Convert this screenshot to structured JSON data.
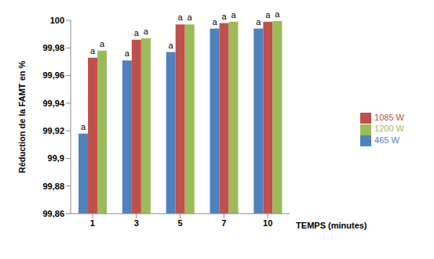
{
  "chart_data": {
    "type": "bar",
    "x_label": "TEMPS (minutes)",
    "y_label": "Réduction de la FAMT en %",
    "categories": [
      "1",
      "3",
      "5",
      "7",
      "10"
    ],
    "series": [
      {
        "name": "465 W",
        "color": "#4f81bd",
        "values": [
          99.918,
          99.971,
          99.977,
          99.994,
          99.994
        ],
        "annotations": [
          "a",
          "a",
          "a",
          "a",
          "a"
        ]
      },
      {
        "name": "1085 W",
        "color": "#c0504d",
        "values": [
          99.973,
          99.986,
          99.997,
          99.998,
          99.999
        ],
        "annotations": [
          "a",
          "a",
          "a",
          "a",
          "a"
        ]
      },
      {
        "name": "1200 W",
        "color": "#9bbb59",
        "values": [
          99.978,
          99.987,
          99.997,
          99.999,
          99.9995
        ],
        "annotations": [
          "a",
          "a",
          "a",
          "a",
          "a"
        ]
      }
    ],
    "ylim": [
      99.86,
      100
    ],
    "yticks": [
      {
        "value": 99.86,
        "label": "99,86"
      },
      {
        "value": 99.88,
        "label": "99,88"
      },
      {
        "value": 99.9,
        "label": "99,9"
      },
      {
        "value": 99.92,
        "label": "99,92"
      },
      {
        "value": 99.94,
        "label": "99,94"
      },
      {
        "value": 99.96,
        "label": "99,96"
      },
      {
        "value": 99.98,
        "label": "99,98"
      },
      100
    ],
    "grid": false,
    "legend": "right"
  }
}
